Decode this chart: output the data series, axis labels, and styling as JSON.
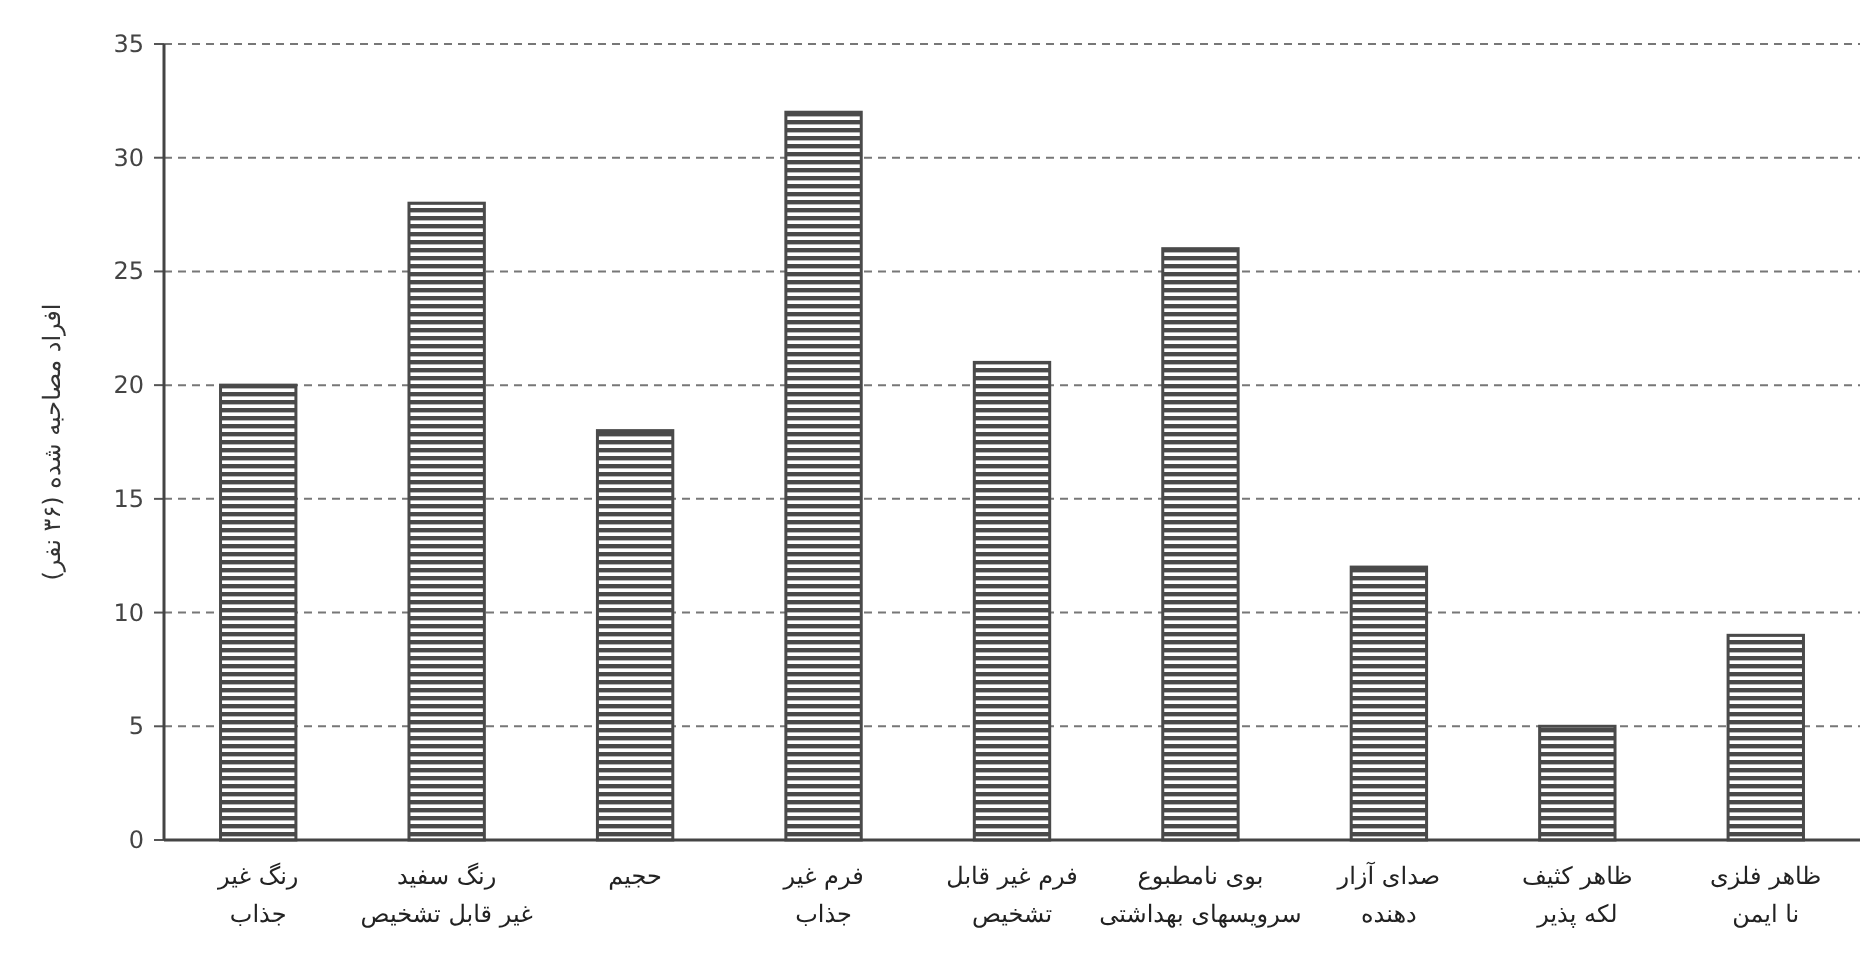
{
  "chart_data": {
    "type": "bar",
    "ylabel": "افراد مصاحبه شده (۳۶ نفر)",
    "categories": [
      "رنگ غیر\nجذاب",
      "رنگ سفید\nغیر قابل تشخیص",
      "حجیم",
      "فرم غیر\nجذاب",
      "فرم غیر قابل\nتشخیص",
      "بوی نامطبوع\nسرویسهای بهداشتی",
      "صدای آزار\nدهنده",
      "ظاهر کثیف\nلکه پذیر",
      "ظاهر فلزی\nنا ایمن"
    ],
    "values": [
      20,
      28,
      18,
      32,
      21,
      26,
      12,
      5,
      9
    ],
    "color": "#4a4a4a",
    "ylim": [
      0,
      35
    ],
    "yticks": [
      0,
      5,
      10,
      15,
      20,
      25,
      30,
      35
    ],
    "grid": "y"
  }
}
